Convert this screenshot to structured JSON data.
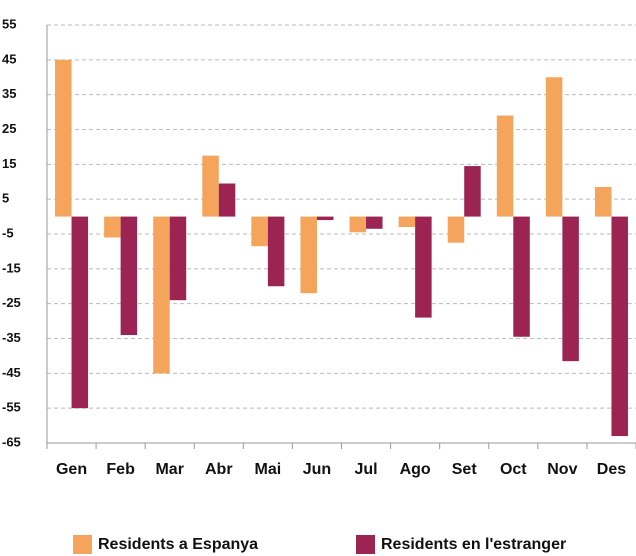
{
  "chart_data": {
    "type": "bar",
    "categories": [
      "Gen",
      "Feb",
      "Mar",
      "Abr",
      "Mai",
      "Jun",
      "Jul",
      "Ago",
      "Set",
      "Oct",
      "Nov",
      "Des"
    ],
    "series": [
      {
        "name": "Residents a Espanya",
        "color": "#f5a45c",
        "values": [
          45,
          -6,
          -45,
          17.5,
          -8.5,
          -22,
          -4.5,
          -3,
          -7.5,
          29,
          40,
          8.5
        ]
      },
      {
        "name": "Residents en l'estranger",
        "color": "#9b2452",
        "values": [
          -55,
          -34,
          -24,
          9.5,
          -20,
          -1,
          -3.5,
          -29,
          14.5,
          -34.5,
          -41.5,
          -63
        ]
      }
    ],
    "ylim": [
      -65,
      55
    ],
    "yticks": [
      55,
      45,
      35,
      25,
      15,
      5,
      -5,
      -15,
      -25,
      -35,
      -45,
      -55,
      -65
    ],
    "grid": true
  }
}
